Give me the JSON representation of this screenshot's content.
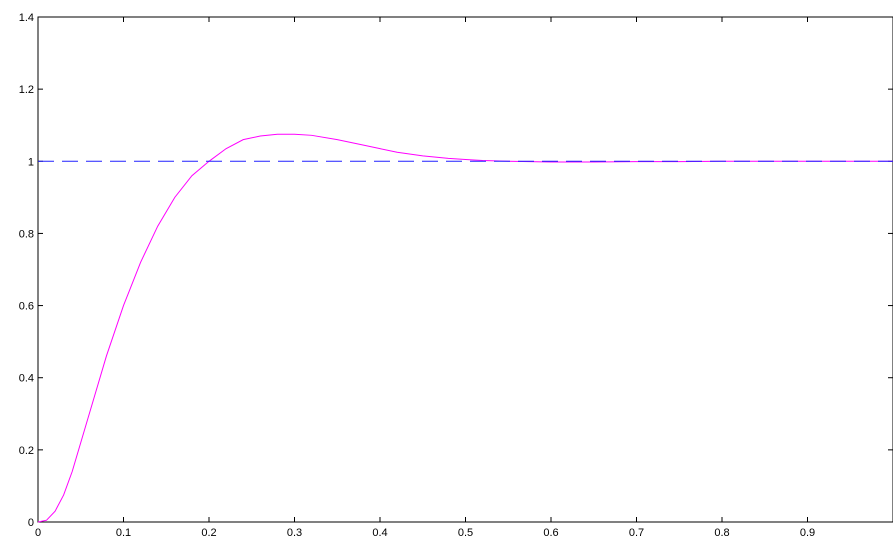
{
  "chart_data": {
    "type": "line",
    "title": "",
    "xlabel": "",
    "ylabel": "",
    "xlim": [
      0,
      1
    ],
    "ylim": [
      0,
      1.4
    ],
    "grid": false,
    "x_ticks": [
      0,
      0.1,
      0.2,
      0.3,
      0.4,
      0.5,
      0.6,
      0.7,
      0.8,
      0.9
    ],
    "x_tick_labels": [
      "0",
      "0.1",
      "0.2",
      "0.3",
      "0.4",
      "0.5",
      "0.6",
      "0.7",
      "0.8",
      "0.9"
    ],
    "y_ticks": [
      0,
      0.2,
      0.4,
      0.6,
      0.8,
      1,
      1.2,
      1.4
    ],
    "y_tick_labels": [
      "0",
      "0.2",
      "0.4",
      "0.6",
      "0.8",
      "1",
      "1.2",
      "1.4"
    ],
    "series": [
      {
        "style": "solid",
        "color": "#ff00ff",
        "x": [
          0,
          0.01,
          0.02,
          0.03,
          0.04,
          0.05,
          0.06,
          0.08,
          0.1,
          0.12,
          0.14,
          0.16,
          0.18,
          0.2,
          0.22,
          0.24,
          0.26,
          0.28,
          0.3,
          0.32,
          0.35,
          0.38,
          0.4,
          0.42,
          0.45,
          0.48,
          0.5,
          0.52,
          0.55,
          0.6,
          0.65,
          0.7,
          0.75,
          0.8,
          0.85,
          0.9,
          0.95,
          1.0
        ],
        "y": [
          0,
          0.005,
          0.03,
          0.075,
          0.14,
          0.22,
          0.3,
          0.46,
          0.6,
          0.72,
          0.82,
          0.9,
          0.96,
          1.0,
          1.035,
          1.06,
          1.07,
          1.075,
          1.075,
          1.072,
          1.06,
          1.045,
          1.035,
          1.025,
          1.015,
          1.008,
          1.005,
          1.002,
          1.0,
          0.998,
          0.998,
          0.999,
          0.999,
          1.0,
          1.0,
          1.0,
          1.0,
          1.0
        ]
      },
      {
        "style": "dashed",
        "color": "#2020ff",
        "x": [
          0,
          1
        ],
        "y": [
          1,
          1
        ]
      }
    ],
    "colors": {
      "axis": "#000000",
      "response": "#ff00ff",
      "reference": "#2020ff"
    }
  }
}
